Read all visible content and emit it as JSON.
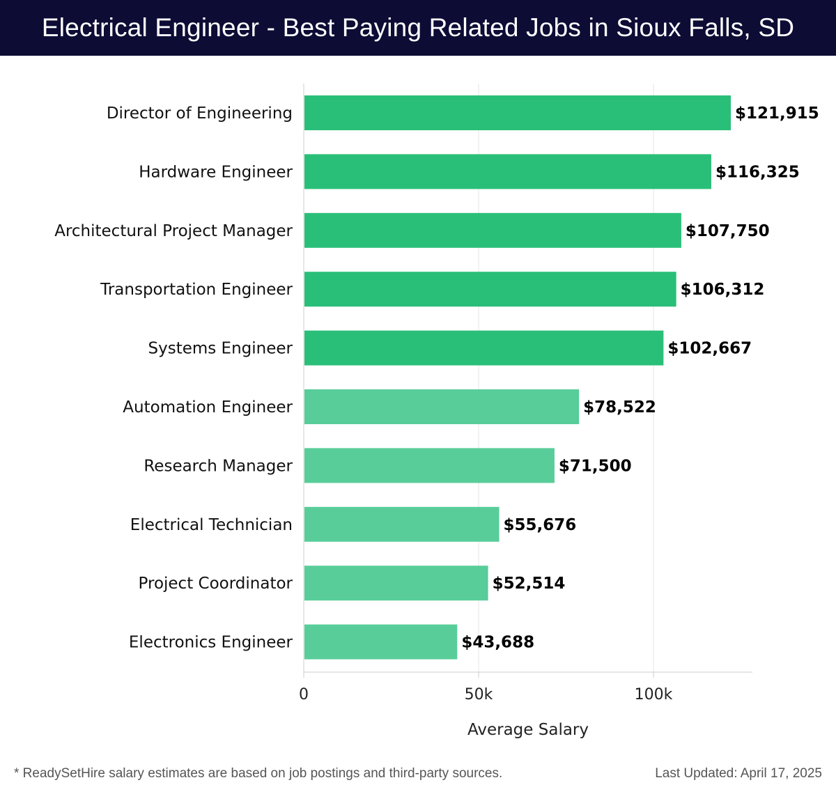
{
  "header": {
    "title": "Electrical Engineer - Best Paying Related Jobs in Sioux Falls, SD"
  },
  "chart_data": {
    "type": "bar",
    "orientation": "horizontal",
    "title": "Electrical Engineer - Best Paying Related Jobs in Sioux Falls, SD",
    "xlabel": "Average Salary",
    "ylabel": "",
    "xlim": [
      0,
      128500
    ],
    "grid": true,
    "ticks": [
      {
        "value": 0,
        "label": "0"
      },
      {
        "value": 50000,
        "label": "50k"
      },
      {
        "value": 100000,
        "label": "100k"
      }
    ],
    "categories": [
      "Director of Engineering",
      "Hardware Engineer",
      "Architectural Project Manager",
      "Transportation Engineer",
      "Systems Engineer",
      "Automation Engineer",
      "Research Manager",
      "Electrical Technician",
      "Project Coordinator",
      "Electronics Engineer"
    ],
    "values": [
      121915,
      116325,
      107750,
      106312,
      102667,
      78522,
      71500,
      55676,
      52514,
      43688
    ],
    "value_labels": [
      "$121,915",
      "$116,325",
      "$107,750",
      "$106,312",
      "$102,667",
      "$78,522",
      "$71,500",
      "$55,676",
      "$52,514",
      "$43,688"
    ],
    "colors": {
      "bar_dark": "#2abf78",
      "bar_light": "#58cd99",
      "grid": "#e4e4e4",
      "axis": "#cccccc",
      "label": "#111111"
    }
  },
  "footer": {
    "note": "* ReadySetHire salary estimates are based on job postings and third-party sources.",
    "updated": "Last Updated: April 17, 2025"
  }
}
